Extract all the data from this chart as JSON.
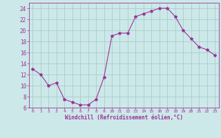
{
  "x": [
    0,
    1,
    2,
    3,
    4,
    5,
    6,
    7,
    8,
    9,
    10,
    11,
    12,
    13,
    14,
    15,
    16,
    17,
    18,
    19,
    20,
    21,
    22,
    23
  ],
  "y": [
    13,
    12,
    10,
    10.5,
    7.5,
    7,
    6.5,
    6.5,
    7.5,
    11.5,
    19,
    19.5,
    19.5,
    22.5,
    23,
    23.5,
    24,
    24,
    22.5,
    20,
    18.5,
    17,
    16.5,
    15.5
  ],
  "line_color": "#993399",
  "marker": "*",
  "marker_size": 3,
  "bg_color": "#cce8e8",
  "grid_color": "#aacccc",
  "xlabel": "Windchill (Refroidissement éolien,°C)",
  "xlabel_color": "#993399",
  "tick_color": "#993399",
  "ylim": [
    6,
    25
  ],
  "xlim": [
    -0.5,
    23.5
  ],
  "yticks": [
    6,
    8,
    10,
    12,
    14,
    16,
    18,
    20,
    22,
    24
  ],
  "xticks": [
    0,
    1,
    2,
    3,
    4,
    5,
    6,
    7,
    8,
    9,
    10,
    11,
    12,
    13,
    14,
    15,
    16,
    17,
    18,
    19,
    20,
    21,
    22,
    23
  ]
}
